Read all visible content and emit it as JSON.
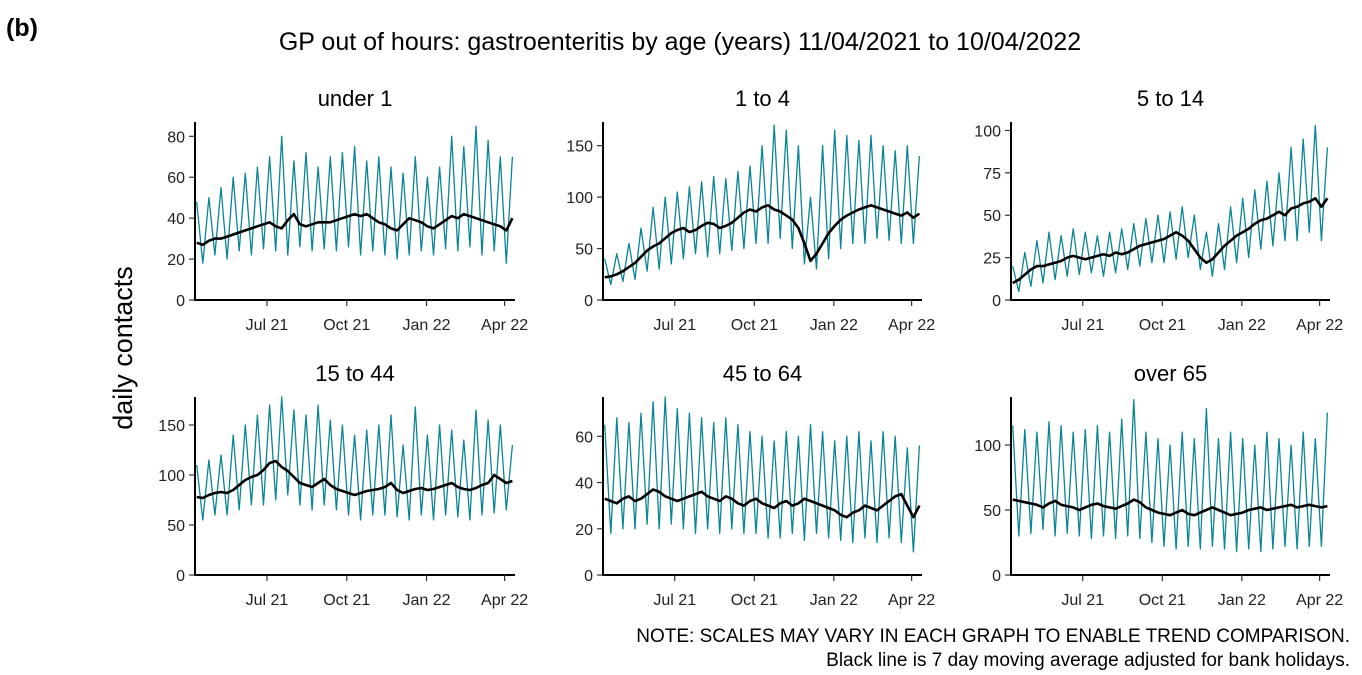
{
  "panel_label": "(b)",
  "title": "GP out of hours: gastroenteritis by age (years) 11/04/2021 to 10/04/2022",
  "y_label": "daily contacts",
  "notes": [
    "NOTE: SCALES MAY VARY IN EACH GRAPH TO ENABLE TREND COMPARISON.",
    "Black line is 7 day moving average adjusted for bank holidays."
  ],
  "chart_data": [
    {
      "type": "line",
      "title": "under 1",
      "xlim": [
        8,
        377
      ],
      "ylim": [
        0,
        87
      ],
      "yticks": [
        0,
        20,
        40,
        60,
        80
      ],
      "xticks": [
        {
          "value": 91,
          "label": "Jul 21"
        },
        {
          "value": 183,
          "label": "Oct 21"
        },
        {
          "value": 275,
          "label": "Jan 22"
        },
        {
          "value": 365,
          "label": "Apr 22"
        }
      ],
      "x": [
        10,
        17,
        24,
        31,
        38,
        45,
        52,
        59,
        66,
        73,
        80,
        87,
        94,
        101,
        108,
        115,
        122,
        129,
        136,
        143,
        150,
        157,
        164,
        171,
        178,
        185,
        192,
        199,
        206,
        213,
        220,
        227,
        234,
        241,
        248,
        255,
        262,
        269,
        276,
        283,
        290,
        297,
        304,
        311,
        318,
        325,
        332,
        339,
        346,
        353,
        360,
        367,
        374
      ],
      "series": [
        {
          "color": "#0a8595",
          "values": [
            48,
            18,
            50,
            22,
            55,
            20,
            60,
            24,
            62,
            22,
            65,
            25,
            70,
            24,
            80,
            22,
            68,
            26,
            72,
            24,
            65,
            25,
            70,
            24,
            72,
            26,
            75,
            22,
            68,
            24,
            70,
            22,
            65,
            20,
            62,
            22,
            70,
            24,
            60,
            22,
            65,
            25,
            80,
            24,
            75,
            26,
            85,
            22,
            78,
            24,
            70,
            18,
            70
          ]
        },
        {
          "color": "#000000",
          "values": [
            28,
            27,
            29,
            30,
            30,
            31,
            32,
            33,
            34,
            35,
            36,
            37,
            38,
            36,
            35,
            39,
            42,
            37,
            36,
            37,
            38,
            38,
            38,
            39,
            40,
            41,
            42,
            41,
            42,
            40,
            38,
            37,
            35,
            34,
            37,
            40,
            39,
            38,
            36,
            35,
            37,
            39,
            41,
            40,
            42,
            41,
            40,
            39,
            38,
            37,
            36,
            34,
            40
          ]
        }
      ]
    },
    {
      "type": "line",
      "title": "1 to 4",
      "xlim": [
        8,
        377
      ],
      "ylim": [
        0,
        173
      ],
      "yticks": [
        0,
        50,
        100,
        150
      ],
      "xticks": [
        {
          "value": 91,
          "label": "Jul 21"
        },
        {
          "value": 183,
          "label": "Oct 21"
        },
        {
          "value": 275,
          "label": "Jan 22"
        },
        {
          "value": 365,
          "label": "Apr 22"
        }
      ],
      "x": [
        10,
        17,
        24,
        31,
        38,
        45,
        52,
        59,
        66,
        73,
        80,
        87,
        94,
        101,
        108,
        115,
        122,
        129,
        136,
        143,
        150,
        157,
        164,
        171,
        178,
        185,
        192,
        199,
        206,
        213,
        220,
        227,
        234,
        241,
        248,
        255,
        262,
        269,
        276,
        283,
        290,
        297,
        304,
        311,
        318,
        325,
        332,
        339,
        346,
        353,
        360,
        367,
        374
      ],
      "series": [
        {
          "color": "#0a8595",
          "values": [
            40,
            15,
            45,
            18,
            55,
            20,
            70,
            28,
            90,
            30,
            100,
            35,
            105,
            40,
            110,
            45,
            115,
            42,
            120,
            45,
            118,
            48,
            125,
            50,
            130,
            55,
            150,
            55,
            170,
            60,
            165,
            50,
            150,
            35,
            100,
            30,
            150,
            40,
            165,
            50,
            160,
            55,
            155,
            55,
            160,
            60,
            150,
            58,
            145,
            55,
            150,
            55,
            140
          ]
        },
        {
          "color": "#000000",
          "values": [
            22,
            23,
            25,
            28,
            32,
            36,
            42,
            48,
            52,
            55,
            60,
            65,
            68,
            70,
            66,
            68,
            72,
            75,
            74,
            70,
            72,
            75,
            80,
            85,
            88,
            86,
            90,
            92,
            88,
            86,
            82,
            78,
            70,
            55,
            38,
            45,
            55,
            65,
            72,
            78,
            82,
            85,
            88,
            90,
            92,
            90,
            88,
            86,
            84,
            82,
            85,
            80,
            84
          ]
        }
      ]
    },
    {
      "type": "line",
      "title": "5 to 14",
      "xlim": [
        8,
        377
      ],
      "ylim": [
        0,
        105
      ],
      "yticks": [
        0,
        25,
        50,
        75,
        100
      ],
      "xticks": [
        {
          "value": 91,
          "label": "Jul 21"
        },
        {
          "value": 183,
          "label": "Oct 21"
        },
        {
          "value": 275,
          "label": "Jan 22"
        },
        {
          "value": 365,
          "label": "Apr 22"
        }
      ],
      "x": [
        10,
        17,
        24,
        31,
        38,
        45,
        52,
        59,
        66,
        73,
        80,
        87,
        94,
        101,
        108,
        115,
        122,
        129,
        136,
        143,
        150,
        157,
        164,
        171,
        178,
        185,
        192,
        199,
        206,
        213,
        220,
        227,
        234,
        241,
        248,
        255,
        262,
        269,
        276,
        283,
        290,
        297,
        304,
        311,
        318,
        325,
        332,
        339,
        346,
        353,
        360,
        367,
        374
      ],
      "series": [
        {
          "color": "#0a8595",
          "values": [
            20,
            5,
            28,
            8,
            35,
            10,
            40,
            12,
            38,
            14,
            42,
            15,
            40,
            16,
            38,
            14,
            40,
            16,
            42,
            18,
            45,
            20,
            48,
            22,
            50,
            22,
            52,
            24,
            55,
            25,
            50,
            18,
            40,
            14,
            45,
            18,
            55,
            22,
            60,
            25,
            65,
            30,
            70,
            32,
            75,
            35,
            90,
            35,
            95,
            40,
            103,
            35,
            90
          ]
        },
        {
          "color": "#000000",
          "values": [
            10,
            12,
            15,
            18,
            20,
            20,
            21,
            22,
            23,
            25,
            26,
            25,
            24,
            25,
            26,
            27,
            26,
            28,
            27,
            28,
            30,
            32,
            33,
            34,
            35,
            36,
            38,
            40,
            38,
            35,
            30,
            25,
            22,
            24,
            28,
            32,
            35,
            38,
            40,
            42,
            45,
            47,
            48,
            50,
            52,
            50,
            54,
            55,
            57,
            58,
            60,
            55,
            60
          ]
        }
      ]
    },
    {
      "type": "line",
      "title": "15 to 44",
      "xlim": [
        8,
        377
      ],
      "ylim": [
        0,
        178
      ],
      "yticks": [
        0,
        50,
        100,
        150
      ],
      "xticks": [
        {
          "value": 91,
          "label": "Jul 21"
        },
        {
          "value": 183,
          "label": "Oct 21"
        },
        {
          "value": 275,
          "label": "Jan 22"
        },
        {
          "value": 365,
          "label": "Apr 22"
        }
      ],
      "x": [
        10,
        17,
        24,
        31,
        38,
        45,
        52,
        59,
        66,
        73,
        80,
        87,
        94,
        101,
        108,
        115,
        122,
        129,
        136,
        143,
        150,
        157,
        164,
        171,
        178,
        185,
        192,
        199,
        206,
        213,
        220,
        227,
        234,
        241,
        248,
        255,
        262,
        269,
        276,
        283,
        290,
        297,
        304,
        311,
        318,
        325,
        332,
        339,
        346,
        353,
        360,
        367,
        374
      ],
      "series": [
        {
          "color": "#0a8595",
          "values": [
            110,
            55,
            115,
            60,
            120,
            60,
            140,
            65,
            150,
            70,
            160,
            70,
            170,
            75,
            178,
            80,
            165,
            70,
            160,
            65,
            170,
            70,
            155,
            65,
            150,
            60,
            140,
            55,
            145,
            60,
            150,
            60,
            160,
            58,
            130,
            55,
            168,
            60,
            140,
            55,
            150,
            60,
            145,
            58,
            135,
            55,
            165,
            60,
            155,
            62,
            150,
            65,
            130
          ]
        },
        {
          "color": "#000000",
          "values": [
            78,
            77,
            80,
            82,
            83,
            82,
            85,
            90,
            95,
            98,
            100,
            105,
            112,
            114,
            108,
            104,
            98,
            92,
            90,
            88,
            92,
            96,
            90,
            86,
            84,
            82,
            80,
            82,
            84,
            85,
            86,
            88,
            92,
            85,
            82,
            84,
            86,
            87,
            85,
            86,
            88,
            90,
            92,
            88,
            86,
            85,
            87,
            90,
            92,
            100,
            96,
            92,
            94
          ]
        }
      ]
    },
    {
      "type": "line",
      "title": "45 to 64",
      "xlim": [
        8,
        377
      ],
      "ylim": [
        0,
        77
      ],
      "yticks": [
        0,
        20,
        40,
        60
      ],
      "xticks": [
        {
          "value": 91,
          "label": "Jul 21"
        },
        {
          "value": 183,
          "label": "Oct 21"
        },
        {
          "value": 275,
          "label": "Jan 22"
        },
        {
          "value": 365,
          "label": "Apr 22"
        }
      ],
      "x": [
        10,
        17,
        24,
        31,
        38,
        45,
        52,
        59,
        66,
        73,
        80,
        87,
        94,
        101,
        108,
        115,
        122,
        129,
        136,
        143,
        150,
        157,
        164,
        171,
        178,
        185,
        192,
        199,
        206,
        213,
        220,
        227,
        234,
        241,
        248,
        255,
        262,
        269,
        276,
        283,
        290,
        297,
        304,
        311,
        318,
        325,
        332,
        339,
        346,
        353,
        360,
        367,
        374
      ],
      "series": [
        {
          "color": "#0a8595",
          "values": [
            65,
            18,
            68,
            20,
            66,
            20,
            70,
            22,
            75,
            20,
            77,
            22,
            72,
            20,
            70,
            18,
            68,
            20,
            66,
            18,
            68,
            20,
            65,
            18,
            62,
            18,
            60,
            16,
            58,
            16,
            62,
            18,
            60,
            15,
            65,
            18,
            62,
            16,
            58,
            15,
            60,
            14,
            62,
            16,
            58,
            14,
            62,
            16,
            60,
            14,
            55,
            10,
            56
          ]
        },
        {
          "color": "#000000",
          "values": [
            33,
            32,
            31,
            33,
            34,
            32,
            33,
            35,
            37,
            36,
            34,
            33,
            32,
            33,
            34,
            35,
            36,
            34,
            33,
            32,
            34,
            33,
            31,
            30,
            32,
            33,
            31,
            30,
            29,
            31,
            32,
            30,
            31,
            33,
            32,
            31,
            30,
            29,
            28,
            26,
            25,
            27,
            28,
            30,
            29,
            28,
            30,
            32,
            34,
            35,
            30,
            25,
            30
          ]
        }
      ]
    },
    {
      "type": "line",
      "title": "over 65",
      "xlim": [
        8,
        377
      ],
      "ylim": [
        0,
        137
      ],
      "yticks": [
        0,
        50,
        100
      ],
      "xticks": [
        {
          "value": 91,
          "label": "Jul 21"
        },
        {
          "value": 183,
          "label": "Oct 21"
        },
        {
          "value": 275,
          "label": "Jan 22"
        },
        {
          "value": 365,
          "label": "Apr 22"
        }
      ],
      "x": [
        10,
        17,
        24,
        31,
        38,
        45,
        52,
        59,
        66,
        73,
        80,
        87,
        94,
        101,
        108,
        115,
        122,
        129,
        136,
        143,
        150,
        157,
        164,
        171,
        178,
        185,
        192,
        199,
        206,
        213,
        220,
        227,
        234,
        241,
        248,
        255,
        262,
        269,
        276,
        283,
        290,
        297,
        304,
        311,
        318,
        325,
        332,
        339,
        346,
        353,
        360,
        367,
        374
      ],
      "series": [
        {
          "color": "#0a8595",
          "values": [
            115,
            30,
            112,
            32,
            110,
            35,
            118,
            30,
            115,
            32,
            110,
            30,
            112,
            28,
            115,
            30,
            110,
            28,
            120,
            30,
            135,
            28,
            110,
            25,
            105,
            22,
            100,
            20,
            110,
            22,
            105,
            20,
            128,
            22,
            105,
            20,
            110,
            18,
            105,
            20,
            100,
            18,
            110,
            20,
            105,
            22,
            100,
            20,
            110,
            22,
            105,
            22,
            125
          ]
        },
        {
          "color": "#000000",
          "values": [
            58,
            57,
            56,
            55,
            54,
            52,
            55,
            57,
            54,
            53,
            52,
            50,
            52,
            54,
            55,
            53,
            52,
            51,
            53,
            55,
            58,
            56,
            52,
            50,
            48,
            47,
            46,
            48,
            50,
            47,
            46,
            48,
            50,
            52,
            50,
            48,
            46,
            47,
            48,
            50,
            51,
            52,
            50,
            51,
            52,
            53,
            54,
            52,
            53,
            54,
            53,
            52,
            53
          ]
        }
      ]
    }
  ]
}
